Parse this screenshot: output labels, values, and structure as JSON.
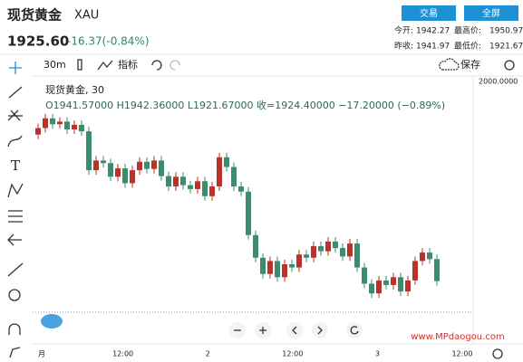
{
  "header": {
    "name": "现货黄金",
    "symbol": "XAU",
    "trade_button": "交易",
    "fullscreen_button": "全屏",
    "price": "1925.60",
    "change": "-16.37(-0.84%)",
    "stats": [
      [
        "今开:",
        "1942.27",
        "最高价:",
        "1950.97"
      ],
      [
        "昨收:",
        "1941.97",
        "最低价:",
        "1921.67"
      ]
    ]
  },
  "toolbar": {
    "interval": "30m",
    "indicators": "指标",
    "save": "保存"
  },
  "legend": {
    "title": "现货黄金, 30",
    "ohlc": "O1941.57000  H1942.36000  L1921.67000  收=1924.40000  −17.20000 (−0.89%)"
  },
  "axis_label": "2000.0000",
  "watermark": "www.MPdaogou.com",
  "chart_data": {
    "type": "candlestick",
    "up_color": "#b8332a",
    "down_color": "#3d8c6f",
    "ylim": [
      1919.6,
      1953.1
    ],
    "x_labels": [
      "月",
      "12:00",
      "2",
      "12:00",
      "3",
      "12:00"
    ],
    "open": [
      1947,
      1948,
      1949.5,
      1948.6,
      1949,
      1947.8,
      1948.5,
      1947.5,
      1941.5,
      1943,
      1942.6,
      1940.5,
      1941.8,
      1939.5,
      1941.5,
      1942.8,
      1941.7,
      1943,
      1940.6,
      1939,
      1940.5,
      1939.2,
      1938.6,
      1939.8,
      1937.5,
      1939,
      1943.5,
      1942,
      1939,
      1938.2,
      1931.5,
      1928,
      1925.5,
      1927.5,
      1925,
      1927,
      1926.5,
      1928.5,
      1928,
      1929.8,
      1929,
      1930.5,
      1929.5,
      1928.2,
      1930.2,
      1926.5,
      1924,
      1922.5,
      1924.5,
      1923.8,
      1925,
      1922.8,
      1924.5,
      1927.5,
      1928.8,
      1927.8
    ],
    "high": [
      1948.7,
      1950.2,
      1950.2,
      1949.7,
      1949.7,
      1949.2,
      1949.2,
      1948.2,
      1943.7,
      1943.7,
      1943.3,
      1942.5,
      1942.5,
      1942.2,
      1943.5,
      1943.5,
      1943.7,
      1943.7,
      1941.3,
      1941.2,
      1941.2,
      1939.9,
      1940.5,
      1940.5,
      1939.7,
      1944.2,
      1944.2,
      1942.7,
      1939.7,
      1938.9,
      1932.2,
      1928.7,
      1928.2,
      1928.2,
      1927.7,
      1927.7,
      1929.2,
      1929.2,
      1930.5,
      1930.5,
      1931.2,
      1931.2,
      1930.2,
      1930.9,
      1930.9,
      1927.2,
      1924.7,
      1925.2,
      1925.2,
      1925.7,
      1925.7,
      1925.2,
      1928.2,
      1929.5,
      1929.5,
      1928.5
    ],
    "low": [
      1946.3,
      1947.3,
      1947.9,
      1947.9,
      1947.1,
      1947.1,
      1946.8,
      1940.8,
      1940.8,
      1941.9,
      1939.8,
      1939.8,
      1938.8,
      1938.8,
      1940.8,
      1941,
      1941,
      1939.9,
      1938.3,
      1938.3,
      1938.5,
      1937.9,
      1937.9,
      1936.8,
      1936.8,
      1938.3,
      1941.3,
      1938.3,
      1937.5,
      1930.8,
      1927.3,
      1924.8,
      1924.8,
      1924.3,
      1924.3,
      1925.8,
      1925.8,
      1927.3,
      1927.3,
      1928.3,
      1928.3,
      1928.8,
      1927.5,
      1927.5,
      1925.8,
      1923.3,
      1921.8,
      1921.8,
      1923.1,
      1923.1,
      1922.1,
      1922.1,
      1923.8,
      1926.8,
      1927.1,
      1923.7
    ],
    "close": [
      1948,
      1949.5,
      1948.6,
      1949,
      1947.8,
      1948.5,
      1947.5,
      1941.5,
      1943,
      1942.6,
      1940.5,
      1941.8,
      1939.5,
      1941.5,
      1942.8,
      1941.7,
      1943,
      1940.6,
      1939,
      1940.5,
      1939.2,
      1938.6,
      1939.8,
      1937.5,
      1939,
      1943.5,
      1942,
      1939,
      1938.2,
      1931.5,
      1928,
      1925.5,
      1927.5,
      1925,
      1927,
      1926.5,
      1928.5,
      1928,
      1929.8,
      1929,
      1930.5,
      1929.5,
      1928.2,
      1930.2,
      1926.5,
      1924,
      1922.5,
      1924.5,
      1923.8,
      1925,
      1922.8,
      1924.5,
      1927.5,
      1928.8,
      1927.8,
      1924.4
    ]
  }
}
